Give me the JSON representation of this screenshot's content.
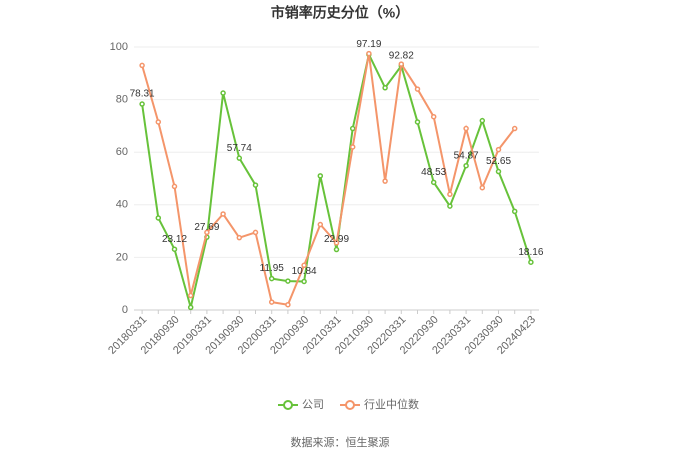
{
  "chart_data": {
    "type": "line",
    "title": "市销率历史分位（%）",
    "categories": [
      "20180331",
      null,
      "20180930",
      null,
      "20190331",
      null,
      "20190930",
      null,
      "20200331",
      null,
      "20200930",
      null,
      "20210331",
      null,
      "20210930",
      null,
      "20220331",
      null,
      "20220930",
      null,
      "20230331",
      null,
      "20230930",
      null,
      "20240423"
    ],
    "series": [
      {
        "name": "公司",
        "color": "#67c23a",
        "values": [
          78.31,
          35,
          23.12,
          1,
          27.69,
          82.5,
          57.74,
          47.5,
          11.95,
          11,
          10.84,
          51,
          22.99,
          69,
          97.19,
          84.5,
          92.82,
          71.5,
          48.53,
          39.5,
          54.87,
          72,
          52.65,
          37.5,
          18.16
        ]
      },
      {
        "name": "行业中位数",
        "color": "#f4956a",
        "values": [
          93,
          71.5,
          47,
          5.5,
          29.5,
          36.5,
          27.5,
          29.5,
          3,
          2,
          17,
          32.5,
          25.5,
          62,
          97.5,
          49,
          93.5,
          84,
          73.5,
          44,
          69,
          46.5,
          61,
          69,
          null
        ]
      }
    ],
    "ylim": [
      0,
      100
    ],
    "yticks": [
      0,
      20,
      40,
      60,
      80,
      100
    ],
    "grid": true,
    "source": "数据来源：恒生聚源"
  }
}
